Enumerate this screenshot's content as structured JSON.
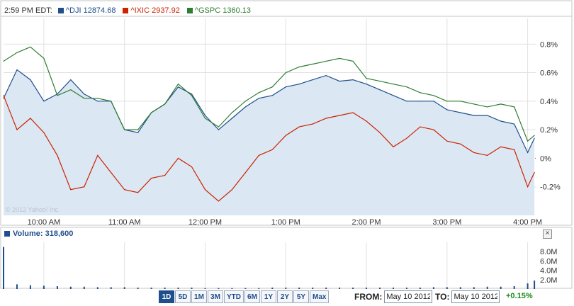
{
  "legend": {
    "time": "2:59 PM EDT:",
    "items": [
      {
        "label": "^DJI 12874.68",
        "color": "#1f4e8c"
      },
      {
        "label": "^IXIC 2937.92",
        "color": "#cc2200"
      },
      {
        "label": "^GSPC 1360.13",
        "color": "#2e7d32"
      }
    ]
  },
  "watermark": "© 2012 Yahoo! Inc.",
  "volume": {
    "label": "Volume: 318,600",
    "close_label": "×"
  },
  "range_buttons": [
    "1D",
    "5D",
    "1M",
    "3M",
    "YTD",
    "6M",
    "1Y",
    "2Y",
    "5Y",
    "Max"
  ],
  "active_range": "1D",
  "date_range": {
    "from_label": "FROM:",
    "from_value": "May 10 2012",
    "to_label": "TO:",
    "to_value": "May 10 2012"
  },
  "change": "+0.15%",
  "colors": {
    "dji": "#1f4e8c",
    "ixic": "#cc2200",
    "gspc": "#2e7d32",
    "fill": "#dbe7f3",
    "grid": "#e1e1e1",
    "zero": "#cc3333"
  },
  "chart_data": [
    {
      "type": "line",
      "x": [
        "9:30",
        "9:40",
        "9:50",
        "10:00",
        "10:10",
        "10:20",
        "10:30",
        "10:40",
        "10:50",
        "11:00",
        "11:10",
        "11:20",
        "11:30",
        "11:40",
        "11:50",
        "12:00",
        "12:10",
        "12:20",
        "12:30",
        "12:40",
        "12:50",
        "13:00",
        "13:10",
        "13:20",
        "13:30",
        "13:40",
        "13:50",
        "14:00",
        "14:10",
        "14:20",
        "14:30",
        "14:40",
        "14:50",
        "15:00",
        "15:10",
        "15:20",
        "15:30",
        "15:40",
        "15:50",
        "16:00",
        "16:05"
      ],
      "x_ticks": [
        "10:00 AM",
        "11:00 AM",
        "12:00 PM",
        "1:00 PM",
        "2:00 PM",
        "3:00 PM",
        "4:00 PM"
      ],
      "x_tick_positions": [
        "10:00",
        "11:00",
        "12:00",
        "13:00",
        "14:00",
        "15:00",
        "16:00"
      ],
      "y_ticks": [
        "0.8%",
        "0.6%",
        "0.4%",
        "0.2%",
        "0%",
        "-0.2%"
      ],
      "y_tick_values": [
        0.8,
        0.6,
        0.4,
        0.2,
        0,
        -0.2
      ],
      "ylim": [
        -0.4,
        0.98
      ],
      "xlim": [
        "9:30",
        "16:06"
      ],
      "series": [
        {
          "name": "^DJI",
          "values": [
            0.42,
            0.62,
            0.55,
            0.4,
            0.45,
            0.55,
            0.45,
            0.4,
            0.4,
            0.2,
            0.18,
            0.32,
            0.38,
            0.5,
            0.45,
            0.3,
            0.2,
            0.28,
            0.36,
            0.42,
            0.44,
            0.5,
            0.52,
            0.55,
            0.58,
            0.54,
            0.55,
            0.52,
            0.48,
            0.44,
            0.4,
            0.4,
            0.4,
            0.34,
            0.32,
            0.3,
            0.3,
            0.26,
            0.24,
            0.04,
            0.14
          ]
        },
        {
          "name": "^IXIC",
          "values": [
            0.44,
            0.2,
            0.28,
            0.18,
            0.02,
            -0.22,
            -0.2,
            0.02,
            -0.1,
            -0.22,
            -0.24,
            -0.14,
            -0.12,
            0.0,
            -0.06,
            -0.22,
            -0.3,
            -0.22,
            -0.1,
            0.02,
            0.06,
            0.16,
            0.22,
            0.24,
            0.28,
            0.3,
            0.32,
            0.26,
            0.18,
            0.08,
            0.14,
            0.22,
            0.2,
            0.12,
            0.1,
            0.04,
            0.02,
            0.08,
            0.06,
            -0.2,
            -0.1
          ]
        },
        {
          "name": "^GSPC",
          "values": [
            0.68,
            0.74,
            0.78,
            0.7,
            0.44,
            0.48,
            0.42,
            0.42,
            0.4,
            0.2,
            0.2,
            0.32,
            0.38,
            0.52,
            0.44,
            0.28,
            0.22,
            0.32,
            0.4,
            0.46,
            0.5,
            0.6,
            0.64,
            0.66,
            0.68,
            0.7,
            0.68,
            0.56,
            0.54,
            0.52,
            0.5,
            0.46,
            0.44,
            0.4,
            0.4,
            0.38,
            0.36,
            0.38,
            0.36,
            0.12,
            0.16
          ]
        }
      ]
    },
    {
      "type": "bar",
      "title": "Volume: 318,600",
      "y_ticks": [
        "8.0M",
        "6.0M",
        "4.0M",
        "2.0M"
      ],
      "y_tick_values": [
        8,
        6,
        4,
        2
      ],
      "ylim": [
        0,
        10
      ],
      "x": [
        "9:30",
        "9:40",
        "9:50",
        "10:00",
        "10:10",
        "10:20",
        "10:30",
        "10:40",
        "10:50",
        "11:00",
        "11:10",
        "11:20",
        "11:30",
        "11:40",
        "11:50",
        "12:00",
        "12:10",
        "12:20",
        "12:30",
        "12:40",
        "12:50",
        "13:00",
        "13:10",
        "13:20",
        "13:30",
        "13:40",
        "13:50",
        "14:00",
        "14:10",
        "14:20",
        "14:30",
        "14:40",
        "14:50",
        "15:00",
        "15:10",
        "15:20",
        "15:30",
        "15:40",
        "15:50",
        "16:00",
        "16:05"
      ],
      "values": [
        9.0,
        1.0,
        0.8,
        0.7,
        0.6,
        0.5,
        0.5,
        0.4,
        0.4,
        0.4,
        0.3,
        0.3,
        0.3,
        0.3,
        0.3,
        0.2,
        0.2,
        0.2,
        0.2,
        0.2,
        0.3,
        0.3,
        0.3,
        0.3,
        0.3,
        0.3,
        0.3,
        0.3,
        0.3,
        0.3,
        0.3,
        0.3,
        0.4,
        0.4,
        0.4,
        0.4,
        0.5,
        0.5,
        0.6,
        1.2,
        1.8
      ]
    }
  ]
}
